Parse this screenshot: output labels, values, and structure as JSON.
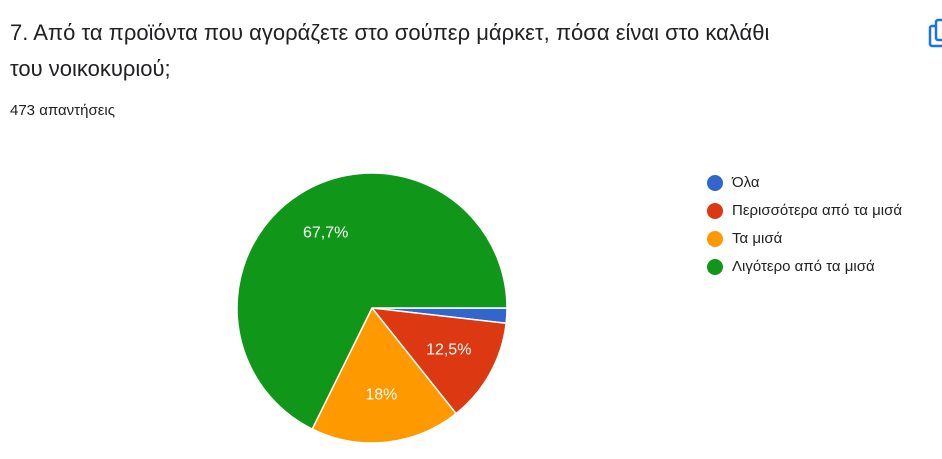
{
  "chart_data": {
    "type": "pie",
    "title": "7. Από τα προϊόντα που αγοράζετε στο σούπερ μάρκετ, πόσα είναι στο καλάθι του νοικοκυριού;",
    "title_lines": [
      "7. Από τα προϊόντα που αγοράζετε στο σούπερ μάρκετ, πόσα είναι στο καλάθι",
      "του νοικοκυριού;"
    ],
    "subtitle": "473 απαντήσεις",
    "categories": [
      "Όλα",
      "Περισσότερα από τα μισά",
      "Τα μισά",
      "Λιγότερο από τα μισά"
    ],
    "values": [
      1.8,
      12.5,
      18,
      67.7
    ],
    "value_labels": [
      null,
      "12,5%",
      "18%",
      "67,7%"
    ],
    "colors": [
      "#3366cc",
      "#dc3912",
      "#ff9900",
      "#109618"
    ],
    "legend": "right"
  }
}
